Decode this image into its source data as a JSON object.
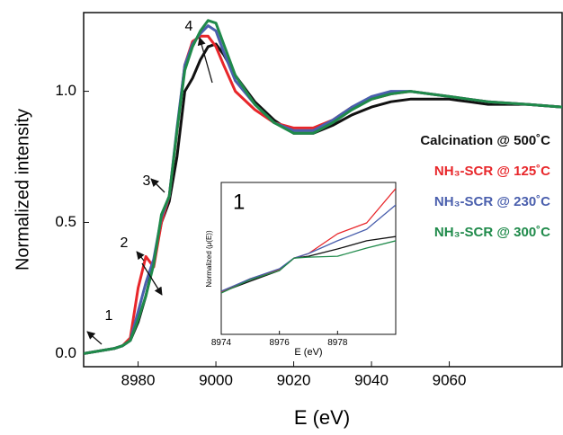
{
  "chart_data": [
    {
      "type": "line",
      "x_label": "E (eV)",
      "y_label": "Normalized intensity",
      "x": [
        8966,
        8970,
        8974,
        8976,
        8978,
        8980,
        8982,
        8984,
        8986,
        8988,
        8990,
        8992,
        8994,
        8996,
        8998,
        9000,
        9002,
        9005,
        9010,
        9015,
        9020,
        9025,
        9030,
        9035,
        9040,
        9045,
        9050,
        9055,
        9060,
        9065,
        9070,
        9080,
        9089
      ],
      "series": [
        {
          "name": "Calcination @ 500˚C",
          "color": "#111111",
          "values": [
            0.0,
            0.01,
            0.02,
            0.03,
            0.05,
            0.12,
            0.22,
            0.35,
            0.5,
            0.58,
            0.75,
            1.0,
            1.05,
            1.12,
            1.17,
            1.18,
            1.14,
            1.06,
            0.96,
            0.89,
            0.84,
            0.84,
            0.87,
            0.91,
            0.94,
            0.96,
            0.97,
            0.97,
            0.97,
            0.96,
            0.95,
            0.95,
            0.94
          ]
        },
        {
          "name": "NH₃-SCR @ 125˚C",
          "color": "#e8262a",
          "values": [
            0.0,
            0.01,
            0.02,
            0.03,
            0.06,
            0.25,
            0.37,
            0.33,
            0.5,
            0.6,
            0.85,
            1.1,
            1.19,
            1.21,
            1.21,
            1.17,
            1.1,
            1.0,
            0.93,
            0.88,
            0.86,
            0.86,
            0.89,
            0.94,
            0.97,
            0.99,
            1.0,
            0.99,
            0.98,
            0.97,
            0.96,
            0.95,
            0.94
          ]
        },
        {
          "name": "NH₃-SCR @ 230˚C",
          "color": "#4a5fad",
          "values": [
            0.0,
            0.01,
            0.02,
            0.03,
            0.05,
            0.16,
            0.27,
            0.36,
            0.52,
            0.6,
            0.86,
            1.1,
            1.18,
            1.22,
            1.25,
            1.23,
            1.15,
            1.04,
            0.95,
            0.88,
            0.85,
            0.85,
            0.89,
            0.94,
            0.98,
            1.0,
            1.0,
            0.99,
            0.98,
            0.97,
            0.96,
            0.95,
            0.94
          ]
        },
        {
          "name": "NH₃-SCR @ 300˚C",
          "color": "#1f8a4a",
          "values": [
            0.0,
            0.01,
            0.02,
            0.03,
            0.05,
            0.13,
            0.22,
            0.34,
            0.53,
            0.6,
            0.85,
            1.08,
            1.17,
            1.23,
            1.27,
            1.26,
            1.18,
            1.06,
            0.95,
            0.88,
            0.84,
            0.84,
            0.88,
            0.93,
            0.97,
            0.99,
            1.0,
            0.99,
            0.98,
            0.97,
            0.96,
            0.95,
            0.94
          ]
        }
      ],
      "xlim": [
        8966,
        9089
      ],
      "ylim": [
        -0.05,
        1.3
      ],
      "xticks": [
        8980,
        9000,
        9020,
        9040,
        9060
      ],
      "yticks": [
        {
          "value": 0,
          "label": "0.0"
        },
        {
          "value": 0.5,
          "label": "0.5"
        },
        {
          "value": 1,
          "label": "1.0"
        }
      ],
      "annotations": [
        "1",
        "2",
        "3",
        "4"
      ]
    },
    {
      "type": "line",
      "title": "1",
      "x_label": "E (eV)",
      "y_label": "Normalized (μ(E))",
      "x": [
        8974,
        8975,
        8976,
        8976.5,
        8977,
        8978,
        8979,
        8980
      ],
      "series": [
        {
          "color": "#111111",
          "values": [
            0.019,
            0.055,
            0.09,
            0.131,
            0.137,
            0.161,
            0.188,
            0.202
          ]
        },
        {
          "color": "#e8262a",
          "values": [
            0.019,
            0.063,
            0.093,
            0.131,
            0.146,
            0.211,
            0.247,
            0.36
          ]
        },
        {
          "color": "#4a5fad",
          "values": [
            0.022,
            0.063,
            0.096,
            0.131,
            0.146,
            0.188,
            0.226,
            0.306
          ]
        },
        {
          "color": "#1f8a4a",
          "values": [
            0.016,
            0.06,
            0.09,
            0.131,
            0.134,
            0.137,
            0.164,
            0.188
          ]
        }
      ],
      "xlim": [
        8974,
        8980
      ],
      "ylim": [
        -0.12,
        0.38
      ],
      "xticks": [
        8974,
        8976,
        8978
      ]
    }
  ]
}
